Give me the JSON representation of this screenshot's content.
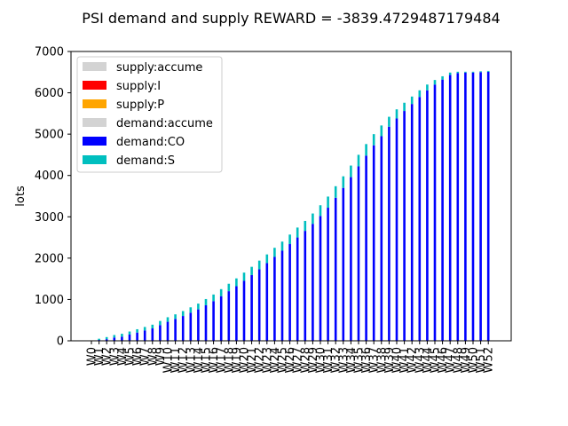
{
  "chart_data": {
    "type": "bar",
    "title": "PSI demand and supply REWARD = -3839.4729487179484",
    "xlabel": "",
    "ylabel": "lots",
    "ylim": [
      0,
      7000
    ],
    "yticks": [
      0,
      1000,
      2000,
      3000,
      4000,
      5000,
      6000,
      7000
    ],
    "grid": false,
    "legend_position": "top-left",
    "categories": [
      "W0",
      "W1",
      "W2",
      "W3",
      "W4",
      "W5",
      "W6",
      "W7",
      "W8",
      "W9",
      "W10",
      "W11",
      "W12",
      "W13",
      "W14",
      "W15",
      "W16",
      "W17",
      "W18",
      "W19",
      "W20",
      "W21",
      "W22",
      "W23",
      "W24",
      "W25",
      "W26",
      "W27",
      "W28",
      "W29",
      "W30",
      "W31",
      "W32",
      "W33",
      "W34",
      "W35",
      "W36",
      "W37",
      "W38",
      "W39",
      "W40",
      "W41",
      "W42",
      "W43",
      "W44",
      "W45",
      "W46",
      "W47",
      "W48",
      "W49",
      "W50",
      "W51",
      "W52"
    ],
    "series": [
      {
        "name": "supply:accume",
        "color": "#d3d3d3",
        "values": [
          0,
          0,
          0,
          0,
          0,
          0,
          0,
          0,
          0,
          0,
          0,
          0,
          0,
          0,
          0,
          0,
          0,
          0,
          0,
          0,
          0,
          0,
          0,
          0,
          0,
          0,
          0,
          0,
          0,
          0,
          0,
          0,
          0,
          0,
          0,
          0,
          0,
          0,
          0,
          0,
          0,
          0,
          0,
          0,
          0,
          0,
          0,
          0,
          0,
          0,
          0,
          0,
          0
        ]
      },
      {
        "name": "supply:I",
        "color": "#ff0000",
        "values": [
          0,
          0,
          0,
          0,
          0,
          0,
          0,
          0,
          0,
          0,
          0,
          0,
          0,
          0,
          0,
          0,
          0,
          0,
          0,
          0,
          0,
          0,
          0,
          0,
          0,
          0,
          0,
          0,
          0,
          0,
          0,
          0,
          0,
          0,
          0,
          0,
          0,
          0,
          0,
          0,
          0,
          0,
          0,
          0,
          0,
          0,
          0,
          0,
          0,
          0,
          0,
          0,
          0
        ]
      },
      {
        "name": "supply:P",
        "color": "#ffa500",
        "values": [
          0,
          0,
          0,
          0,
          0,
          0,
          0,
          0,
          0,
          0,
          0,
          0,
          0,
          0,
          0,
          0,
          0,
          0,
          0,
          0,
          0,
          0,
          0,
          0,
          0,
          0,
          0,
          0,
          0,
          0,
          0,
          0,
          0,
          0,
          0,
          0,
          0,
          0,
          0,
          0,
          0,
          0,
          0,
          0,
          0,
          0,
          0,
          0,
          0,
          0,
          0,
          0,
          0
        ]
      },
      {
        "name": "demand:accume",
        "color": "#d3d3d3",
        "values": [
          0,
          0,
          0,
          0,
          0,
          0,
          0,
          0,
          0,
          0,
          0,
          0,
          0,
          0,
          0,
          0,
          0,
          0,
          0,
          0,
          0,
          0,
          0,
          0,
          0,
          0,
          0,
          0,
          0,
          0,
          0,
          0,
          0,
          0,
          0,
          0,
          0,
          0,
          0,
          0,
          0,
          0,
          0,
          0,
          0,
          0,
          0,
          0,
          0,
          0,
          0,
          0,
          0
        ]
      },
      {
        "name": "demand:CO",
        "color": "#0000ff",
        "values": [
          0,
          20,
          40,
          80,
          100,
          150,
          200,
          250,
          300,
          380,
          460,
          530,
          600,
          680,
          760,
          860,
          960,
          1080,
          1200,
          1320,
          1450,
          1590,
          1730,
          1880,
          2030,
          2180,
          2340,
          2500,
          2660,
          2830,
          3020,
          3220,
          3460,
          3700,
          3960,
          4220,
          4480,
          4730,
          4950,
          5180,
          5380,
          5560,
          5730,
          5900,
          6060,
          6200,
          6320,
          6430,
          6480,
          6490,
          6490,
          6500,
          6510
        ]
      },
      {
        "name": "demand:S",
        "color": "#00bfbf",
        "values": [
          0,
          30,
          50,
          60,
          70,
          75,
          80,
          85,
          90,
          100,
          110,
          110,
          120,
          130,
          140,
          150,
          160,
          170,
          180,
          190,
          200,
          200,
          210,
          210,
          220,
          220,
          230,
          240,
          240,
          250,
          260,
          270,
          280,
          280,
          280,
          280,
          280,
          270,
          260,
          240,
          220,
          200,
          180,
          160,
          140,
          110,
          80,
          60,
          30,
          20,
          20,
          20,
          20
        ]
      }
    ]
  }
}
